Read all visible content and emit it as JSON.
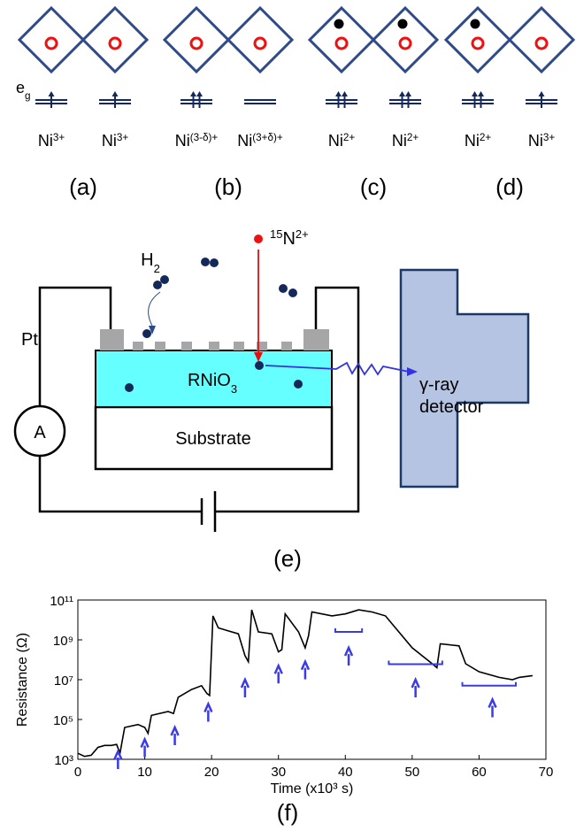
{
  "orbitals": {
    "eg_label": {
      "base": "e",
      "sub": "g"
    },
    "panels": [
      {
        "ions": [
          {
            "base": "Ni",
            "sup": "3+"
          },
          {
            "base": "Ni",
            "sup": "3+"
          }
        ],
        "label": "(a)"
      },
      {
        "ions": [
          {
            "base": "Ni",
            "sup": "(3-δ)+"
          },
          {
            "base": "Ni",
            "sup": "(3+δ)+"
          }
        ],
        "label": "(b)"
      },
      {
        "ions": [
          {
            "base": "Ni",
            "sup": "2+"
          },
          {
            "base": "Ni",
            "sup": "2+"
          }
        ],
        "label": "(c)"
      },
      {
        "ions": [
          {
            "base": "Ni",
            "sup": "2+"
          },
          {
            "base": "Ni",
            "sup": "3+"
          }
        ],
        "label": "(d)"
      }
    ]
  },
  "setup": {
    "h2": {
      "base": "H",
      "sub": "2"
    },
    "ion": {
      "pre": "15",
      "base": "N",
      "sup": "2+"
    },
    "pt": "Pt",
    "film": {
      "base": "RNiO",
      "sub": "3"
    },
    "substrate": "Substrate",
    "ammeter": "A",
    "detector": [
      "γ-ray",
      "detector"
    ],
    "label": "(e)"
  },
  "chart_data": {
    "type": "line",
    "xlabel": "Time (x10³ s)",
    "ylabel": "Resistance (Ω)",
    "panel_label": "(f)",
    "log_y": true,
    "xlim": [
      0,
      70
    ],
    "xticks": [
      0,
      10,
      20,
      30,
      40,
      50,
      60,
      70
    ],
    "ylim": [
      1000,
      100000000000
    ],
    "yticks": [
      {
        "value": 1000,
        "label": "10³"
      },
      {
        "value": 100000,
        "label": "10⁵"
      },
      {
        "value": 10000000,
        "label": "10⁷"
      },
      {
        "value": 1000000000,
        "label": "10⁹"
      },
      {
        "value": 100000000000,
        "label": "10¹¹"
      }
    ],
    "x": [
      0,
      1,
      2,
      3,
      4,
      5,
      5.8,
      6.3,
      7,
      9,
      10,
      10.5,
      11,
      13.5,
      14.3,
      15,
      17,
      18.5,
      19.3,
      19.7,
      20.2,
      21,
      24,
      25,
      25.5,
      26,
      27,
      29,
      30,
      30.5,
      31,
      33,
      34,
      34.5,
      35,
      38,
      40,
      42,
      44,
      46,
      47,
      50,
      53,
      53.7,
      54.2,
      57,
      58,
      60,
      63,
      65,
      66,
      68
    ],
    "series": [
      {
        "color": "#000000",
        "values": [
          2000,
          1400,
          1600,
          4000,
          5000,
          5000,
          5600,
          2000,
          40000,
          56000,
          40000,
          20000,
          160000,
          250000,
          200000,
          1300000,
          3200000,
          5000000,
          2000000,
          1600000,
          16000000000,
          4000000000,
          2000000000,
          160000000,
          80000000,
          32000000000,
          2500000000,
          2000000000,
          250000000,
          320000000,
          20000000000,
          2500000000,
          400000000,
          1600000000,
          25000000000,
          16000000000,
          20000000000,
          32000000000,
          25000000000,
          16000000000,
          6300000000,
          400000000,
          63000000,
          40000000,
          630000000,
          500000000,
          63000000,
          25000000,
          13000000,
          10000000,
          13000000,
          16000000
        ]
      }
    ],
    "arrow_color": "#3a3ae8",
    "arrows": [
      {
        "x": 6,
        "y": 2500
      },
      {
        "x": 10,
        "y": 10000
      },
      {
        "x": 14.5,
        "y": 40000
      },
      {
        "x": 19.5,
        "y": 600000
      },
      {
        "x": 25,
        "y": 10000000
      },
      {
        "x": 30,
        "y": 50000000
      },
      {
        "x": 34,
        "y": 80000000
      },
      {
        "x": 40.5,
        "y": 400000000
      },
      {
        "x": 50.5,
        "y": 10000000
      },
      {
        "x": 62,
        "y": 1000000
      }
    ],
    "brackets": [
      {
        "x0": 38.5,
        "x1": 42.5,
        "y": 2500000000
      },
      {
        "x0": 46.5,
        "x1": 54.5,
        "y": 60000000
      },
      {
        "x0": 57.5,
        "x1": 65.5,
        "y": 5000000
      }
    ]
  }
}
